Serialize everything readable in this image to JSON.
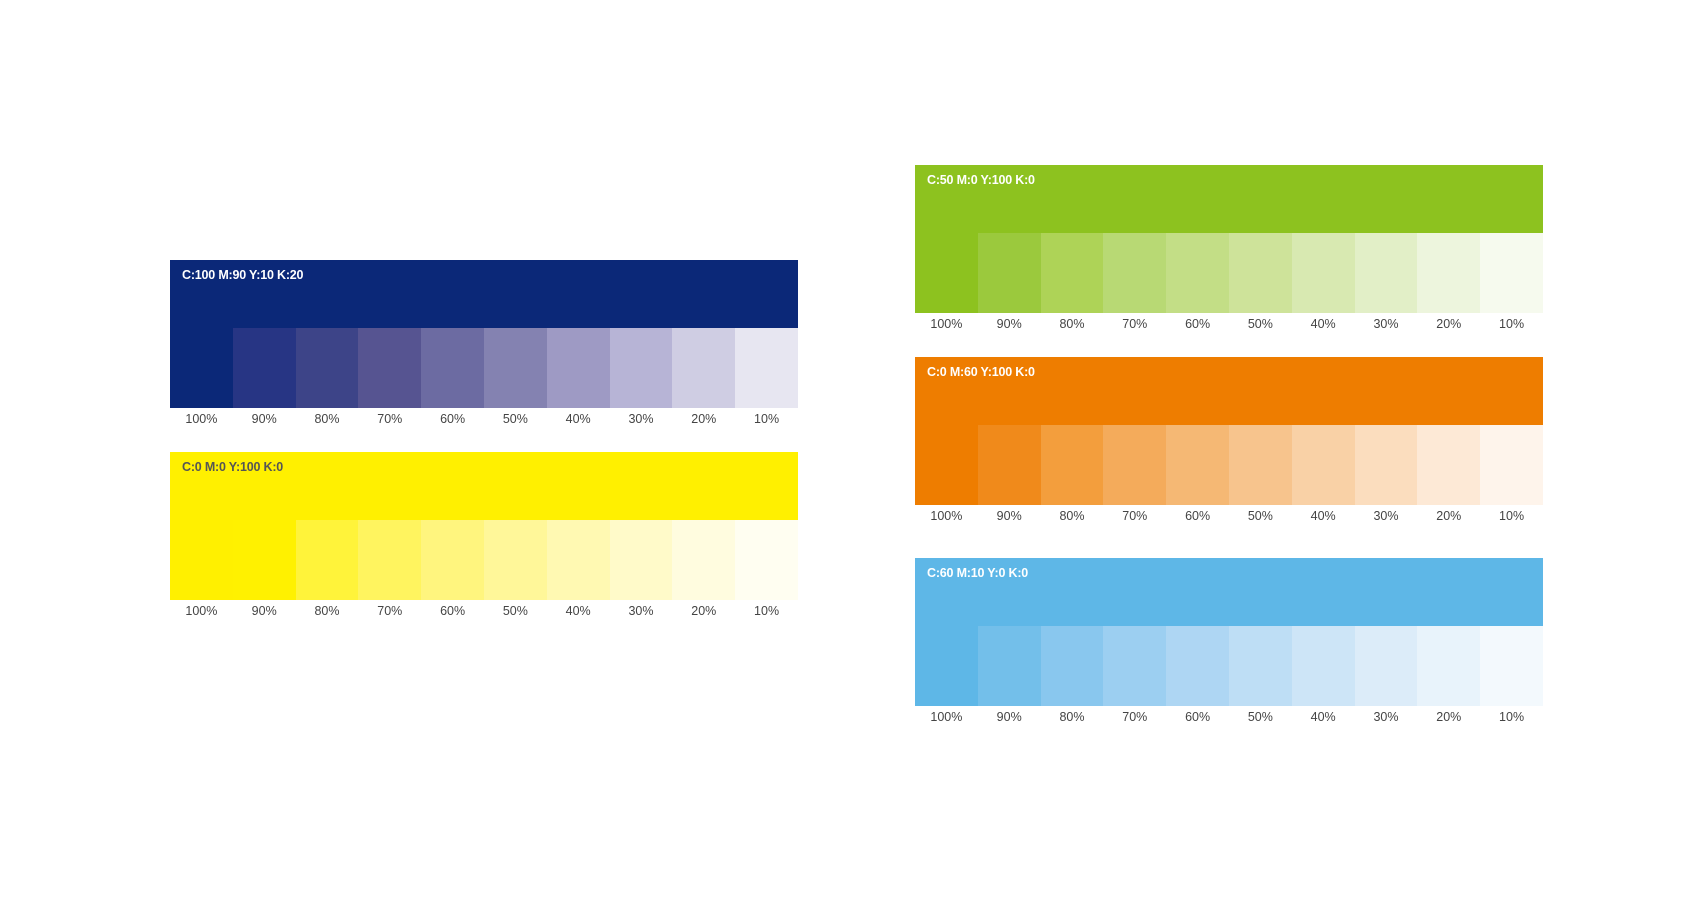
{
  "shade_labels": [
    "100%",
    "90%",
    "80%",
    "70%",
    "60%",
    "50%",
    "40%",
    "30%",
    "20%",
    "10%"
  ],
  "palettes": [
    {
      "id": "navy",
      "code": "C:100 M:90 Y:10 K:20",
      "base_color": "#0B2878",
      "label_color": "#ffffff",
      "swatches": [
        "#0B2878",
        "#273584",
        "#3D4488",
        "#565491",
        "#6C6BA2",
        "#8482B1",
        "#9E9AC4",
        "#B7B4D6",
        "#CFCDE3",
        "#E7E6F1"
      ]
    },
    {
      "id": "yellow",
      "code": "C:0 M:0 Y:100 K:0",
      "base_color": "#FFF000",
      "label_color": "#555555",
      "swatches": [
        "#FFF000",
        "#FFF100",
        "#FFF33A",
        "#FFF45F",
        "#FFF57E",
        "#FFF799",
        "#FFF9B2",
        "#FFFAC9",
        "#FFFCDF",
        "#FFFEF1"
      ]
    },
    {
      "id": "green",
      "code": "C:50 M:0 Y:100 K:0",
      "base_color": "#8DC21F",
      "label_color": "#ffffff",
      "swatches": [
        "#8DC21F",
        "#9BC93D",
        "#AED357",
        "#B8D974",
        "#C3DE86",
        "#CEE39A",
        "#D8E9B1",
        "#E2EFC7",
        "#EDF5DD",
        "#F6FAEE"
      ]
    },
    {
      "id": "orange",
      "code": "C:0 M:60 Y:100 K:0",
      "base_color": "#EE7D00",
      "label_color": "#ffffff",
      "swatches": [
        "#EE7D00",
        "#F08A1B",
        "#F39E3D",
        "#F4AB5B",
        "#F5B874",
        "#F7C48D",
        "#F9D1A6",
        "#FBDDBE",
        "#FDE9D6",
        "#FEF4EB"
      ]
    },
    {
      "id": "sky",
      "code": "C:60 M:10 Y:0 K:0",
      "base_color": "#5EB7E7",
      "label_color": "#ffffff",
      "swatches": [
        "#5EB7E7",
        "#73BFEA",
        "#89C7EE",
        "#9CCFF1",
        "#AED6F3",
        "#BEDEF5",
        "#CDE5F7",
        "#DCECF9",
        "#E8F3FB",
        "#F3F9FD"
      ]
    }
  ]
}
